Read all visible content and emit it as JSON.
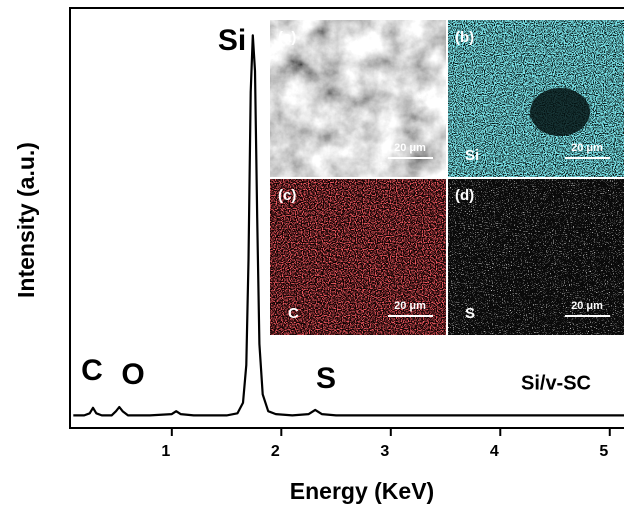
{
  "chart_data": {
    "type": "line",
    "xlabel": "Energy (KeV)",
    "ylabel": "Intensity (a.u.)",
    "x": [
      0.1,
      0.2,
      0.25,
      0.28,
      0.31,
      0.36,
      0.45,
      0.49,
      0.52,
      0.55,
      0.6,
      0.8,
      1.0,
      1.04,
      1.08,
      1.2,
      1.5,
      1.6,
      1.65,
      1.68,
      1.7,
      1.72,
      1.74,
      1.76,
      1.78,
      1.8,
      1.83,
      1.88,
      1.95,
      2.1,
      2.25,
      2.31,
      2.37,
      2.5,
      3,
      3.5,
      4,
      4.5,
      5,
      5.13
    ],
    "values": [
      3,
      3,
      3.5,
      4.8,
      3.5,
      3,
      3,
      4,
      5,
      4,
      3,
      3,
      3.3,
      4,
      3.3,
      3,
      3,
      3.5,
      6,
      15,
      40,
      80,
      93.5,
      85,
      50,
      20,
      8,
      4,
      3.3,
      3,
      3.3,
      4.3,
      3.3,
      3,
      3,
      3,
      3,
      3,
      3,
      3
    ],
    "color": "#000000",
    "xlim": [
      0.07,
      5.13
    ],
    "xticks": [
      1,
      2,
      3,
      4,
      5
    ],
    "ylim": [
      0,
      100
    ],
    "annotations": [
      "C",
      "O",
      "Si",
      "S",
      "Si/v-SC"
    ],
    "insets": [
      {
        "label": "(a)",
        "scale_bar": "20 μm"
      },
      {
        "label": "(b)",
        "element": "Si",
        "scale_bar": "20 μm"
      },
      {
        "label": "(c)",
        "element": "C",
        "scale_bar": "20 μm"
      },
      {
        "label": "(d)",
        "element": "S",
        "scale_bar": "20 μm"
      }
    ]
  }
}
